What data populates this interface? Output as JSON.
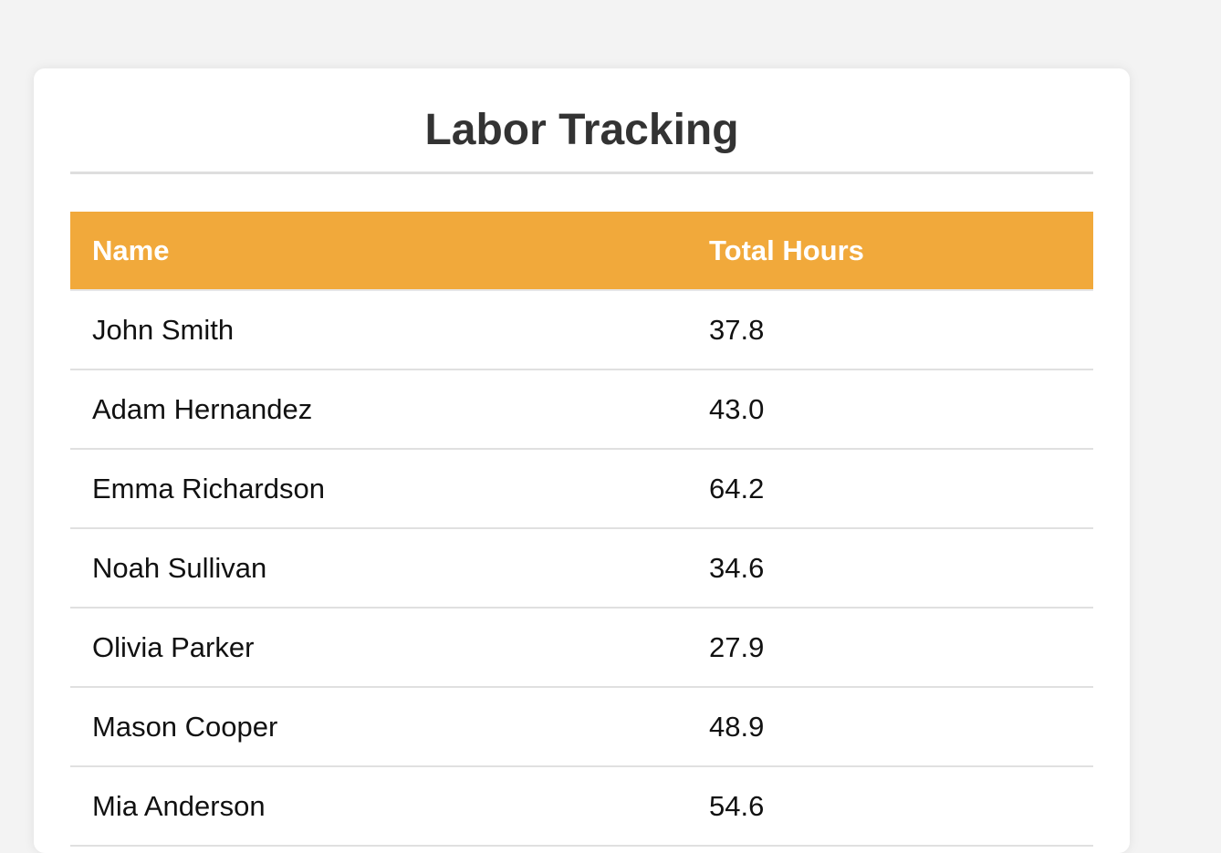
{
  "page": {
    "title": "Labor Tracking"
  },
  "table": {
    "headers": {
      "name": "Name",
      "total_hours": "Total Hours"
    },
    "rows": [
      {
        "name": "John Smith",
        "hours": "37.8"
      },
      {
        "name": "Adam Hernandez",
        "hours": "43.0"
      },
      {
        "name": "Emma Richardson",
        "hours": "64.2"
      },
      {
        "name": "Noah Sullivan",
        "hours": "34.6"
      },
      {
        "name": "Olivia Parker",
        "hours": "27.9"
      },
      {
        "name": "Mason Cooper",
        "hours": "48.9"
      },
      {
        "name": "Mia Anderson",
        "hours": "54.6"
      }
    ]
  },
  "colors": {
    "background": "#f3f3f3",
    "card": "#ffffff",
    "header_accent": "#f1a93b",
    "title_text": "#333333"
  }
}
